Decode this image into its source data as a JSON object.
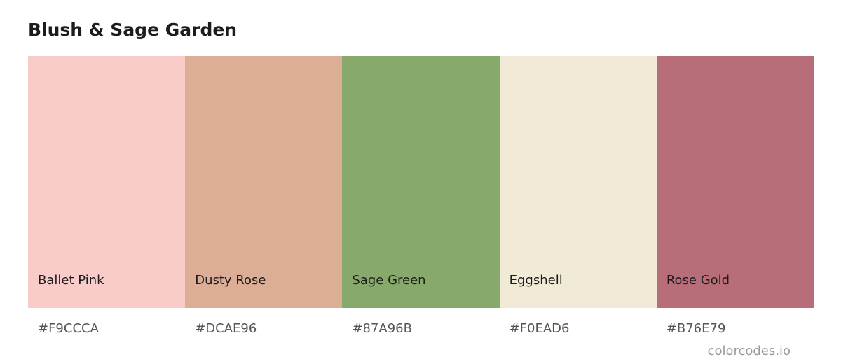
{
  "title": "Blush & Sage Garden",
  "colors": [
    {
      "name": "Ballet Pink",
      "hex": "#F9CCCA"
    },
    {
      "name": "Dusty Rose",
      "hex": "#DCAE96"
    },
    {
      "name": "Sage Green",
      "hex": "#87A96B"
    },
    {
      "name": "Eggshell",
      "hex": "#F0EAD6"
    },
    {
      "name": "Rose Gold",
      "hex": "#B76E79"
    }
  ],
  "footer": "colorcodes.io"
}
